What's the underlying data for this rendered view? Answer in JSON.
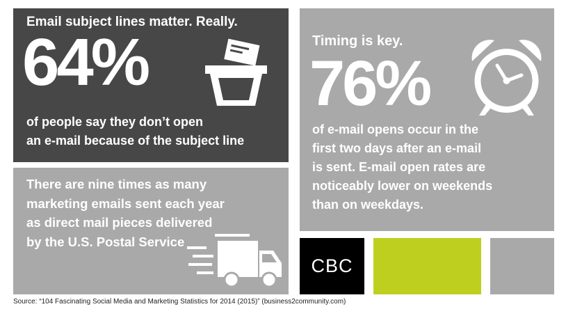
{
  "panel1": {
    "heading": "Email subject lines matter. Really.",
    "stat": "64%",
    "caption_lines": [
      "of people say they don’t open",
      "an e-mail because of the subject line"
    ],
    "icon": "trash-can-icon"
  },
  "panel2": {
    "heading": "Timing is key.",
    "stat": "76%",
    "caption_lines": [
      "of e-mail opens occur in the",
      "first two days after an e-mail",
      "is sent. E-mail open rates are",
      "noticeably lower on weekends",
      "than on weekdays."
    ],
    "icon": "alarm-clock-icon"
  },
  "panel3": {
    "caption_lines": [
      "There are nine times as many",
      "marketing emails sent each year",
      "as direct mail pieces delivered",
      "by the U.S. Postal Service"
    ],
    "icon": "delivery-truck-icon"
  },
  "logo": {
    "text": "CBC"
  },
  "source": "Source: “104 Fascinating Social Media and Marketing Statistics for 2014 (2015)” (business2community.com)",
  "colors": {
    "dark_panel": "#474748",
    "grey_panel": "#a9a9aa",
    "lime_panel": "#bfcf1f",
    "logo_bg": "#000000",
    "text_on_panel": "#ffffff"
  }
}
